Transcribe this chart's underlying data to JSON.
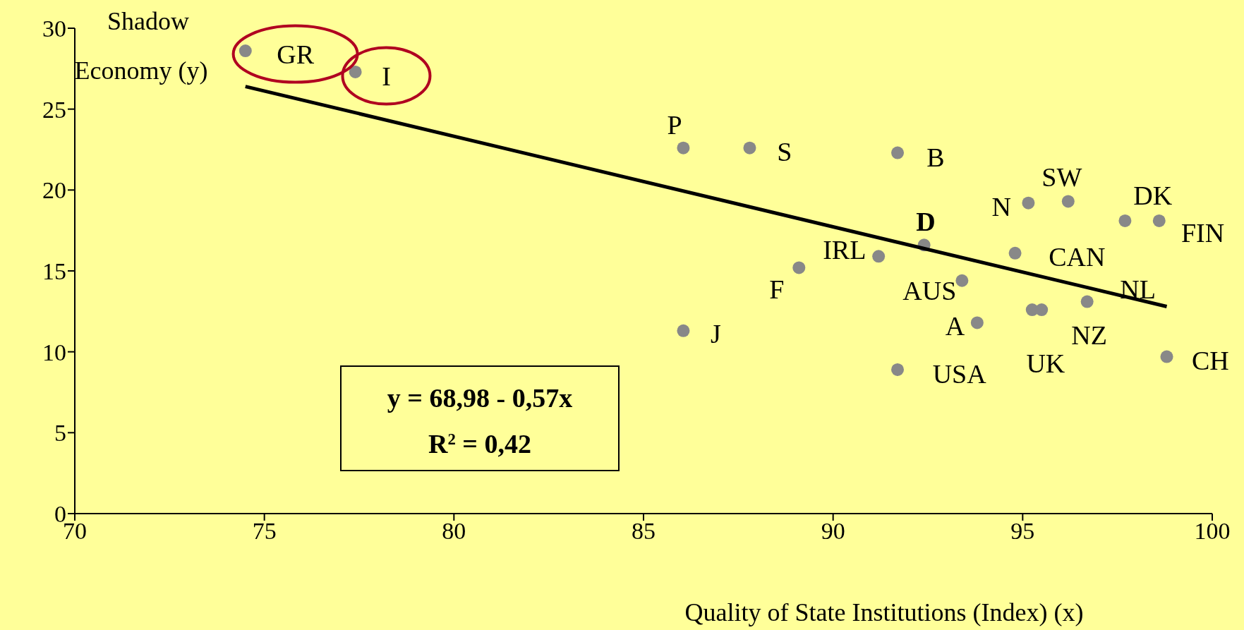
{
  "chart_data": {
    "type": "scatter",
    "xlabel": "Quality of State Institutions (Index) (x)",
    "ylabel": "Shadow Economy (y)",
    "xlim": [
      70,
      100
    ],
    "xticks": [
      70,
      75,
      80,
      85,
      90,
      95,
      100
    ],
    "ylim": [
      0,
      30
    ],
    "yticks": [
      0,
      5,
      10,
      15,
      20,
      25,
      30
    ],
    "marker": "circle",
    "series": [
      {
        "color": "#888888",
        "x": [
          74.5,
          77.4,
          86.05,
          87.8,
          91.7,
          95.15,
          96.2,
          97.7,
          98.6,
          92.4,
          91.2,
          94.8,
          89.1,
          93.4,
          96.7,
          95.25,
          95.5,
          93.8,
          86.05,
          91.7,
          98.8
        ],
        "values": [
          28.6,
          27.3,
          22.6,
          22.6,
          22.3,
          19.2,
          19.3,
          18.1,
          18.1,
          16.6,
          15.9,
          16.1,
          15.2,
          14.4,
          13.1,
          12.6,
          12.6,
          11.8,
          11.3,
          8.9,
          9.7
        ]
      },
      {
        "type": "line",
        "marker": "none",
        "color": "#000000",
        "x": [
          74.5,
          98.8
        ],
        "values": [
          26.4,
          12.8
        ]
      }
    ],
    "annotations": [
      {
        "text": "GR",
        "x": 74.5,
        "y": 28.6
      },
      {
        "text": "I",
        "x": 77.4,
        "y": 27.3
      },
      {
        "text": "P",
        "x": 86.05,
        "y": 22.6
      },
      {
        "text": "S",
        "x": 87.8,
        "y": 22.6
      },
      {
        "text": "B",
        "x": 91.7,
        "y": 22.3
      },
      {
        "text": "N",
        "x": 95.15,
        "y": 19.2
      },
      {
        "text": "SW",
        "x": 96.2,
        "y": 19.3
      },
      {
        "text": "DK",
        "x": 97.7,
        "y": 18.1
      },
      {
        "text": "FIN",
        "x": 98.6,
        "y": 18.1
      },
      {
        "text": "D",
        "x": 92.4,
        "y": 16.6
      },
      {
        "text": "IRL",
        "x": 91.2,
        "y": 15.9
      },
      {
        "text": "CAN",
        "x": 94.8,
        "y": 16.1
      },
      {
        "text": "F",
        "x": 89.1,
        "y": 15.2
      },
      {
        "text": "AUS",
        "x": 93.4,
        "y": 14.4
      },
      {
        "text": "NL",
        "x": 96.7,
        "y": 13.1
      },
      {
        "text": "UK",
        "x": 95.25,
        "y": 12.6
      },
      {
        "text": "NZ",
        "x": 95.5,
        "y": 12.6
      },
      {
        "text": "A",
        "x": 93.8,
        "y": 11.8
      },
      {
        "text": "J",
        "x": 86.05,
        "y": 11.3
      },
      {
        "text": "USA",
        "x": 91.7,
        "y": 8.9
      },
      {
        "text": "CH",
        "x": 98.8,
        "y": 9.7
      },
      "y = 68,98 - 0,57x",
      "R$^{2}$ = 0,42"
    ]
  }
}
